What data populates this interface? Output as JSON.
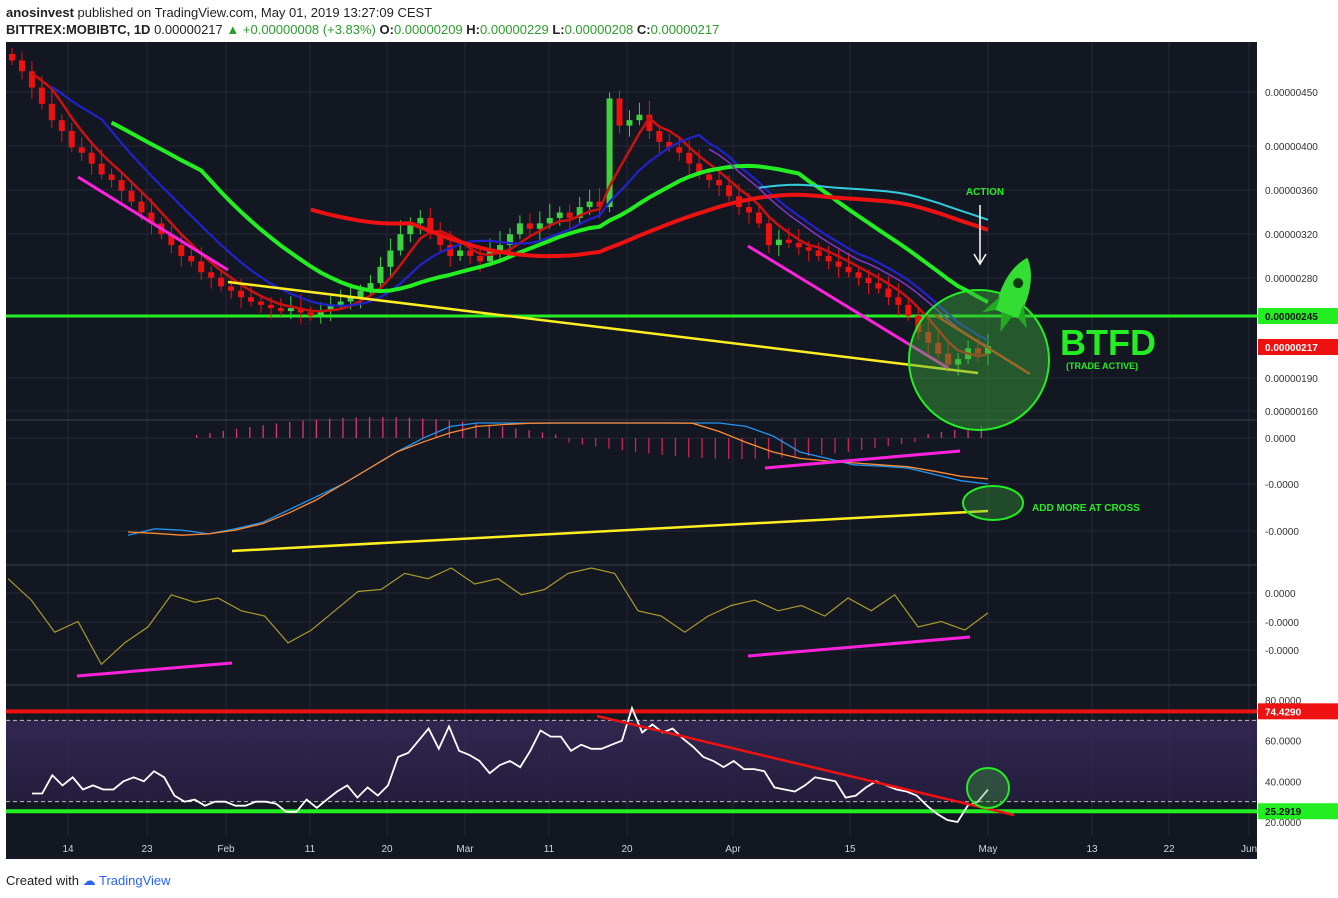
{
  "header": {
    "user": "anosinvest",
    "published_text": "published on TradingView.com, May 01, 2019 13:27:09 CEST",
    "symbol": "BITTREX:MOBIBTC, 1D",
    "last_price": "0.00000217",
    "change": "+0.00000008 (+3.83%)",
    "open_label": "O:",
    "open": "0.00000209",
    "high_label": "H:",
    "high": "0.00000229",
    "low_label": "L:",
    "low": "0.00000208",
    "close_label": "C:",
    "close": "0.00000217"
  },
  "footer": {
    "created_with": "Created with",
    "brand": "TradingView"
  },
  "colors": {
    "background": "#131722",
    "up_candle": "#3fd23f",
    "down_candle": "#ee1111",
    "support_line": "#22ee22",
    "resistance_line": "#ee1111",
    "trendline_yellow": "#ffee22",
    "trendline_magenta": "#ff22dd",
    "accent_green": "#22ee22"
  },
  "chart_data": [
    {
      "type": "candlestick",
      "panel": "price",
      "y_ticks": [
        "0.00000450",
        "0.00000400",
        "0.00000360",
        "0.00000320",
        "0.00000280",
        "0.00000245",
        "0.00000217",
        "0.00000190",
        "0.00000160"
      ],
      "ylim": [
        1.58e-06,
        5.1e-06
      ],
      "x_ticks": [
        "14",
        "23",
        "Feb",
        "11",
        "20",
        "Mar",
        "11",
        "20",
        "Apr",
        "15",
        "May",
        "13",
        "22",
        "Jun"
      ],
      "horizontal_levels": [
        {
          "value": 2.45e-06,
          "label": "0.00000245",
          "color": "#22ee22"
        },
        {
          "value": 2.17e-06,
          "label": "0.00000217",
          "color": "#ee1111"
        }
      ],
      "close_path": [
        480,
        470,
        455,
        440,
        425,
        415,
        400,
        395,
        385,
        375,
        370,
        360,
        350,
        340,
        330,
        320,
        310,
        300,
        295,
        285,
        280,
        272,
        268,
        262,
        258,
        255,
        252,
        250,
        252,
        248,
        245,
        250,
        255,
        258,
        262,
        268,
        275,
        290,
        305,
        320,
        330,
        335,
        320,
        310,
        300,
        305,
        300,
        295,
        305,
        310,
        320,
        330,
        325,
        330,
        335,
        340,
        335,
        345,
        350,
        345,
        445,
        420,
        425,
        430,
        415,
        405,
        400,
        395,
        385,
        375,
        370,
        365,
        355,
        345,
        340,
        330,
        310,
        315,
        312,
        308,
        305,
        300,
        295,
        290,
        285,
        280,
        275,
        270,
        262,
        255,
        245,
        230,
        220,
        210,
        200,
        205,
        215,
        210,
        217
      ],
      "annotations": [
        "ACTION",
        "BTFD",
        "(TRADE ACTIVE)"
      ]
    },
    {
      "type": "line",
      "panel": "macd",
      "y_ticks": [
        "0.0000",
        "-0.0000",
        "-0.0000"
      ],
      "series": [
        {
          "values": [
            -0.8,
            -0.7,
            -0.72,
            -0.78,
            -0.7,
            -0.6,
            -0.4,
            -0.2,
            0.0,
            0.25,
            0.5,
            0.72,
            0.9,
            1.0,
            1.0,
            0.95,
            1.0,
            1.0,
            0.96,
            0.98,
            1.0,
            1.0,
            1.0,
            0.9,
            0.75,
            0.5,
            0.4,
            0.3,
            0.28,
            0.25,
            0.15,
            0.05,
            0.0
          ]
        },
        {
          "values": [
            -0.75,
            -0.77,
            -0.8,
            -0.78,
            -0.72,
            -0.62,
            -0.45,
            -0.25,
            0.0,
            0.25,
            0.5,
            0.66,
            0.8,
            0.9,
            0.93,
            0.95,
            0.96,
            0.97,
            1.0,
            1.0,
            1.0,
            0.95,
            0.82,
            0.65,
            0.5,
            0.4,
            0.36,
            0.33,
            0.3,
            0.27,
            0.2,
            0.12,
            0.08
          ]
        }
      ],
      "annotations": [
        "ADD MORE AT CROSS"
      ]
    },
    {
      "type": "line",
      "panel": "oscillator",
      "y_ticks": [
        "0.0000",
        "-0.0000",
        "-0.0000"
      ],
      "series": [
        {
          "values": [
            0.9,
            0.7,
            0.4,
            0.5,
            0.1,
            0.3,
            0.45,
            0.75,
            0.68,
            0.72,
            0.6,
            0.55,
            0.3,
            0.42,
            0.6,
            0.78,
            0.8,
            0.95,
            0.9,
            1.0,
            0.85,
            0.9,
            0.75,
            0.8,
            0.95,
            1.0,
            0.95,
            0.6,
            0.55,
            0.4,
            0.55,
            0.65,
            0.7,
            0.6,
            0.65,
            0.55,
            0.72,
            0.6,
            0.75,
            0.45,
            0.5,
            0.42,
            0.58
          ]
        }
      ]
    },
    {
      "type": "line",
      "panel": "rsi",
      "y_ticks": [
        "80.0000",
        "60.0000",
        "40.0000",
        "25.2919",
        "20.0000"
      ],
      "ylim": [
        18,
        83
      ],
      "horizontal_levels": [
        {
          "value": 74.429,
          "label": "74.4290",
          "color": "#ee1111"
        },
        {
          "value": 25.2919,
          "label": "25.2919",
          "color": "#22ee22"
        }
      ],
      "series": [
        {
          "values": [
            34,
            34,
            43,
            38,
            42,
            36,
            38,
            36,
            36,
            40,
            42,
            40,
            45,
            42,
            33,
            30,
            31,
            28,
            30,
            30,
            28,
            28,
            30,
            30,
            29,
            25,
            25,
            31,
            27,
            31,
            35,
            38,
            32,
            37,
            33,
            38,
            52,
            54,
            60,
            66,
            56,
            67,
            55,
            53,
            50,
            44,
            48,
            50,
            47,
            55,
            65,
            62,
            62,
            55,
            58,
            56,
            56,
            58,
            60,
            76,
            64,
            68,
            64,
            66,
            61,
            57,
            52,
            50,
            47,
            50,
            46,
            46,
            45,
            37,
            36,
            35,
            38,
            42,
            41,
            40,
            32,
            33,
            37,
            40,
            38,
            36,
            35,
            33,
            28,
            24,
            21,
            20,
            28,
            30,
            36
          ]
        }
      ]
    }
  ]
}
